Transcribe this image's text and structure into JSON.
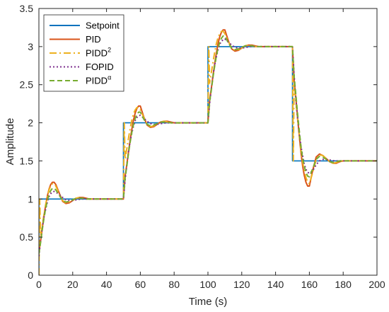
{
  "chart_data": {
    "type": "line",
    "xlabel": "Time (s)",
    "ylabel": "Amplitude",
    "xlim": [
      0,
      200
    ],
    "ylim": [
      0,
      3.5
    ],
    "xticks": [
      "0",
      "20",
      "40",
      "60",
      "80",
      "100",
      "120",
      "140",
      "160",
      "180",
      "200"
    ],
    "yticks": [
      "0",
      "0.5",
      "1",
      "1.5",
      "2",
      "2.5",
      "3",
      "3.5"
    ],
    "grid": false,
    "legend_position": "top-left",
    "series": [
      {
        "name": "Setpoint",
        "legend_base": "Setpoint",
        "legend_sup": "",
        "color": "#0072BD",
        "dash": "solid",
        "x": [
          0,
          0,
          50,
          50,
          100,
          100,
          150,
          150,
          200
        ],
        "y": [
          0,
          1,
          1,
          2,
          2,
          3,
          3,
          1.5,
          1.5
        ]
      },
      {
        "name": "PID",
        "legend_base": "PID",
        "legend_sup": "",
        "color": "#D95319",
        "dash": "solid",
        "x": [
          0,
          1,
          2,
          3,
          4,
          5,
          6,
          7,
          8,
          9,
          10,
          12,
          14,
          16,
          18,
          20,
          22,
          24,
          26,
          28,
          30,
          35,
          40,
          45,
          50,
          51,
          52,
          53,
          54,
          55,
          56,
          57,
          58,
          59,
          60,
          62,
          64,
          66,
          68,
          70,
          72,
          74,
          76,
          78,
          80,
          85,
          90,
          95,
          100,
          101,
          102,
          103,
          104,
          105,
          106,
          107,
          108,
          109,
          110,
          112,
          114,
          116,
          118,
          120,
          122,
          124,
          126,
          128,
          130,
          135,
          140,
          145,
          150,
          151,
          152,
          153,
          154,
          155,
          156,
          157,
          158,
          159,
          160,
          162,
          164,
          166,
          168,
          170,
          172,
          174,
          176,
          178,
          180,
          185,
          190,
          195,
          200
        ],
        "y": [
          0.3,
          0.45,
          0.62,
          0.78,
          0.92,
          1.04,
          1.13,
          1.19,
          1.22,
          1.22,
          1.19,
          1.08,
          0.97,
          0.94,
          0.95,
          0.98,
          1.01,
          1.02,
          1.02,
          1.01,
          1.0,
          1.0,
          1.0,
          1.0,
          1.0,
          1.3,
          1.45,
          1.62,
          1.78,
          1.92,
          2.04,
          2.13,
          2.19,
          2.22,
          2.22,
          2.08,
          1.97,
          1.94,
          1.95,
          1.98,
          2.01,
          2.02,
          2.02,
          2.01,
          2.0,
          2.0,
          2.0,
          2.0,
          2.0,
          2.3,
          2.45,
          2.62,
          2.78,
          2.92,
          3.04,
          3.13,
          3.19,
          3.22,
          3.22,
          3.08,
          2.97,
          2.94,
          2.95,
          2.98,
          3.01,
          3.02,
          3.02,
          3.01,
          3.0,
          3.0,
          3.0,
          3.0,
          3.0,
          2.55,
          2.33,
          2.07,
          1.83,
          1.62,
          1.44,
          1.31,
          1.22,
          1.17,
          1.17,
          1.38,
          1.55,
          1.59,
          1.57,
          1.53,
          1.49,
          1.47,
          1.47,
          1.49,
          1.5,
          1.5,
          1.5,
          1.5,
          1.5
        ]
      },
      {
        "name": "PIDD2",
        "legend_base": "PIDD",
        "legend_sup": "2",
        "color": "#EDB120",
        "dash": "10,4,2,4",
        "x": [
          0,
          0.5,
          1,
          2,
          3,
          4,
          5,
          6,
          7,
          8,
          9,
          10,
          12,
          14,
          16,
          18,
          20,
          22,
          24,
          26,
          28,
          30,
          35,
          40,
          45,
          50,
          50.5,
          51,
          52,
          53,
          54,
          55,
          56,
          57,
          58,
          59,
          60,
          62,
          64,
          66,
          68,
          70,
          72,
          74,
          76,
          78,
          80,
          85,
          90,
          95,
          100,
          100.5,
          101,
          102,
          103,
          104,
          105,
          106,
          107,
          108,
          109,
          110,
          112,
          114,
          116,
          118,
          120,
          122,
          124,
          126,
          128,
          130,
          135,
          140,
          145,
          150,
          150.5,
          151,
          152,
          153,
          154,
          155,
          156,
          157,
          158,
          159,
          160,
          162,
          164,
          166,
          168,
          170,
          172,
          174,
          176,
          178,
          180,
          185,
          190,
          195,
          200
        ],
        "y": [
          0,
          1.0,
          0.52,
          0.66,
          0.8,
          0.93,
          1.04,
          1.12,
          1.17,
          1.2,
          1.2,
          1.17,
          1.07,
          0.98,
          0.95,
          0.96,
          0.98,
          1.01,
          1.02,
          1.01,
          1.0,
          1.0,
          1.0,
          1.0,
          1.0,
          1.0,
          2.0,
          1.52,
          1.66,
          1.8,
          1.93,
          2.04,
          2.12,
          2.17,
          2.2,
          2.2,
          2.17,
          2.07,
          1.98,
          1.95,
          1.96,
          1.98,
          2.01,
          2.02,
          2.01,
          2.0,
          2.0,
          2.0,
          2.0,
          2.0,
          2.0,
          3.0,
          2.52,
          2.66,
          2.8,
          2.93,
          3.04,
          3.12,
          3.17,
          3.2,
          3.2,
          3.17,
          3.07,
          2.98,
          2.95,
          2.96,
          2.98,
          3.01,
          3.02,
          3.01,
          3.0,
          3.0,
          3.0,
          3.0,
          3.0,
          3.0,
          1.5,
          2.52,
          2.28,
          2.05,
          1.84,
          1.65,
          1.49,
          1.37,
          1.28,
          1.22,
          1.2,
          1.35,
          1.52,
          1.58,
          1.57,
          1.53,
          1.49,
          1.47,
          1.48,
          1.49,
          1.5,
          1.5,
          1.5,
          1.5,
          1.5
        ]
      },
      {
        "name": "FOPID",
        "legend_base": "FOPID",
        "legend_sup": "",
        "color": "#7E2F8E",
        "dash": "2,3",
        "x": [
          0,
          1,
          2,
          3,
          4,
          5,
          6,
          7,
          8,
          9,
          10,
          12,
          14,
          16,
          18,
          20,
          25,
          30,
          40,
          50,
          51,
          52,
          53,
          54,
          55,
          56,
          57,
          58,
          59,
          60,
          62,
          64,
          66,
          68,
          70,
          75,
          80,
          90,
          100,
          101,
          102,
          103,
          104,
          105,
          106,
          107,
          108,
          109,
          110,
          112,
          114,
          116,
          118,
          120,
          125,
          130,
          140,
          150,
          151,
          152,
          153,
          154,
          155,
          156,
          157,
          158,
          159,
          160,
          162,
          164,
          166,
          168,
          170,
          175,
          180,
          190,
          200
        ],
        "y": [
          0.25,
          0.45,
          0.62,
          0.76,
          0.87,
          0.96,
          1.03,
          1.07,
          1.09,
          1.1,
          1.09,
          1.06,
          1.02,
          0.99,
          0.98,
          0.98,
          1.0,
          1.0,
          1.0,
          1.0,
          1.25,
          1.45,
          1.62,
          1.76,
          1.87,
          1.96,
          2.03,
          2.07,
          2.09,
          2.1,
          2.06,
          2.02,
          1.99,
          1.98,
          1.98,
          2.0,
          2.0,
          2.0,
          2.0,
          2.25,
          2.45,
          2.62,
          2.76,
          2.87,
          2.96,
          3.03,
          3.07,
          3.09,
          3.1,
          3.06,
          3.02,
          2.99,
          2.98,
          2.98,
          3.0,
          3.0,
          3.0,
          3.0,
          2.62,
          2.32,
          2.07,
          1.86,
          1.7,
          1.57,
          1.46,
          1.39,
          1.35,
          1.34,
          1.37,
          1.45,
          1.5,
          1.52,
          1.52,
          1.5,
          1.5,
          1.5,
          1.5
        ]
      },
      {
        "name": "PIDDα",
        "legend_base": "PIDD",
        "legend_sup": "α",
        "color": "#77AC30",
        "dash": "7,4",
        "x": [
          0,
          1,
          2,
          3,
          4,
          5,
          6,
          7,
          8,
          9,
          10,
          12,
          14,
          16,
          18,
          20,
          22,
          24,
          26,
          28,
          30,
          35,
          40,
          50,
          51,
          52,
          53,
          54,
          55,
          56,
          57,
          58,
          59,
          60,
          62,
          64,
          66,
          68,
          70,
          72,
          74,
          76,
          78,
          80,
          85,
          90,
          100,
          101,
          102,
          103,
          104,
          105,
          106,
          107,
          108,
          109,
          110,
          112,
          114,
          116,
          118,
          120,
          122,
          124,
          126,
          128,
          130,
          135,
          140,
          150,
          151,
          152,
          153,
          154,
          155,
          156,
          157,
          158,
          159,
          160,
          162,
          164,
          166,
          168,
          170,
          172,
          174,
          176,
          178,
          180,
          185,
          190,
          200
        ],
        "y": [
          0.28,
          0.43,
          0.6,
          0.75,
          0.88,
          0.98,
          1.06,
          1.11,
          1.14,
          1.14,
          1.12,
          1.05,
          0.98,
          0.96,
          0.97,
          0.99,
          1.01,
          1.01,
          1.01,
          1.0,
          1.0,
          1.0,
          1.0,
          1.0,
          1.28,
          1.43,
          1.6,
          1.75,
          1.88,
          1.98,
          2.06,
          2.11,
          2.14,
          2.14,
          2.05,
          1.98,
          1.96,
          1.97,
          1.99,
          2.01,
          2.01,
          2.01,
          2.0,
          2.0,
          2.0,
          2.0,
          2.0,
          2.28,
          2.43,
          2.6,
          2.75,
          2.88,
          2.98,
          3.06,
          3.11,
          3.14,
          3.14,
          3.05,
          2.98,
          2.96,
          2.97,
          2.99,
          3.01,
          3.01,
          3.01,
          3.0,
          3.0,
          3.0,
          3.0,
          3.0,
          2.6,
          2.37,
          2.12,
          1.9,
          1.7,
          1.54,
          1.43,
          1.35,
          1.3,
          1.29,
          1.4,
          1.52,
          1.56,
          1.55,
          1.52,
          1.49,
          1.48,
          1.49,
          1.5,
          1.5,
          1.5,
          1.5,
          1.5
        ]
      }
    ]
  }
}
